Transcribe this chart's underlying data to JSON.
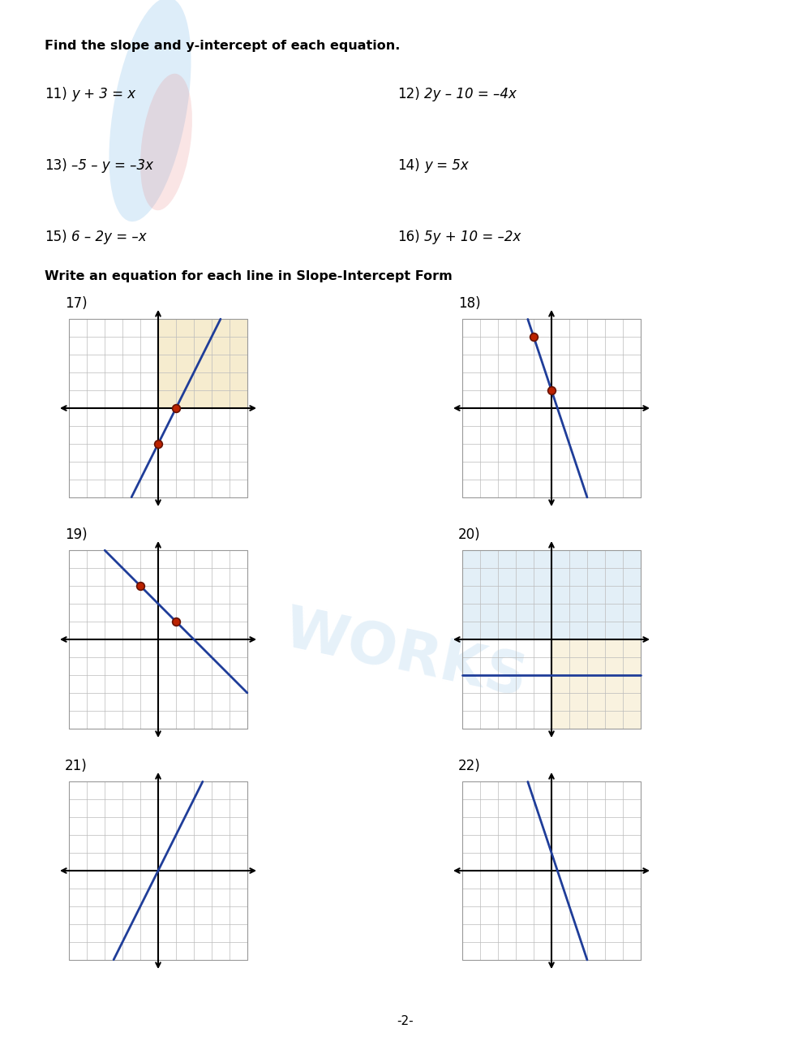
{
  "title_section1": "Find the slope and y-intercept of each equation.",
  "title_section2": "Write an equation for each line in Slope-Intercept Form",
  "equations": [
    {
      "num": "11)",
      "text": "y + 3 = x"
    },
    {
      "num": "12)",
      "text": "2y – 10 = –4x"
    },
    {
      "num": "13)",
      "text": "–5 – y = –3x"
    },
    {
      "num": "14)",
      "text": "y = 5x"
    },
    {
      "num": "15)",
      "text": "6 – 2y = –x"
    },
    {
      "num": "16)",
      "text": "5y + 10 = –2x"
    }
  ],
  "graphs": [
    {
      "num": "17)",
      "slope": 2,
      "intercept": -2,
      "points": [
        [
          1,
          0
        ],
        [
          0,
          -2
        ]
      ],
      "highlight": "upper_right",
      "line_color": "#1f3d99",
      "dot_color": "#bb2200"
    },
    {
      "num": "18)",
      "slope": -3,
      "intercept": 1,
      "points": [
        [
          -1,
          4
        ],
        [
          0,
          1
        ]
      ],
      "highlight": "none",
      "line_color": "#1f3d99",
      "dot_color": "#bb2200"
    },
    {
      "num": "19)",
      "slope": -1,
      "intercept": 2,
      "points": [
        [
          -1,
          3
        ],
        [
          1,
          1
        ]
      ],
      "highlight": "none",
      "line_color": "#1f3d99",
      "dot_color": "#bb2200"
    },
    {
      "num": "20)",
      "slope": 0,
      "intercept": -2,
      "points": [],
      "highlight": "upper_full_lower_right",
      "line_color": "#1f3d99",
      "dot_color": "#bb2200"
    },
    {
      "num": "21)",
      "slope": 2,
      "intercept": 0,
      "points": [],
      "highlight": "none",
      "line_color": "#1f3d99",
      "dot_color": "#bb2200"
    },
    {
      "num": "22)",
      "slope": -3,
      "intercept": 1,
      "points": [],
      "highlight": "none",
      "line_color": "#1f3d99",
      "dot_color": "#bb2200"
    }
  ],
  "background_color": "#ffffff",
  "text_color": "#000000",
  "grid_color": "#bbbbbb",
  "axis_color": "#000000",
  "page_number": "-2-",
  "fig_width": 10.0,
  "fig_height": 12.94
}
